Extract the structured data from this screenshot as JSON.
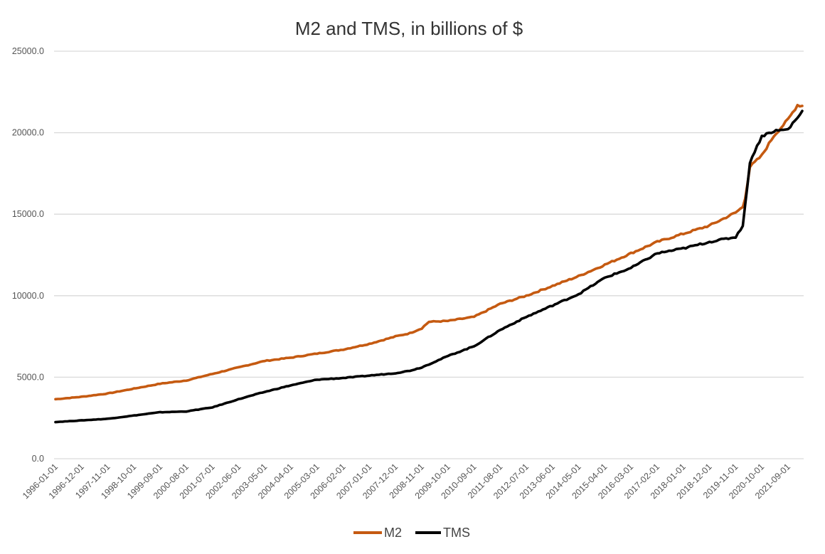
{
  "chart_data": {
    "type": "line",
    "title": "M2 and TMS, in billions of $",
    "xlabel": "",
    "ylabel": "",
    "ylim": [
      0,
      25000
    ],
    "yticks": [
      "0.0",
      "5000.0",
      "10000.0",
      "15000.0",
      "20000.0",
      "25000.0"
    ],
    "ytick_values": [
      0,
      5000,
      10000,
      15000,
      20000,
      25000
    ],
    "x_start": "1996-01-01",
    "x_end": "2022-03-01",
    "xticks": [
      "1996-01-01",
      "1996-12-01",
      "1997-11-01",
      "1998-10-01",
      "1999-09-01",
      "2000-08-01",
      "2001-07-01",
      "2002-06-01",
      "2003-05-01",
      "2004-04-01",
      "2005-03-01",
      "2006-02-01",
      "2007-01-01",
      "2007-12-01",
      "2008-11-01",
      "2009-10-01",
      "2010-09-01",
      "2011-08-01",
      "2012-07-01",
      "2013-06-01",
      "2014-05-01",
      "2015-04-01",
      "2016-03-01",
      "2017-02-01",
      "2018-01-01",
      "2018-12-01",
      "2019-11-01",
      "2020-10-01",
      "2021-09-01"
    ],
    "grid": true,
    "legend_position": "bottom",
    "series": [
      {
        "name": "M2",
        "color": "#c55a11",
        "points": [
          [
            "1996-01-01",
            3650
          ],
          [
            "1996-12-01",
            3800
          ],
          [
            "1997-11-01",
            4000
          ],
          [
            "1998-10-01",
            4300
          ],
          [
            "1999-09-01",
            4600
          ],
          [
            "2000-08-01",
            4800
          ],
          [
            "2001-07-01",
            5200
          ],
          [
            "2002-06-01",
            5600
          ],
          [
            "2003-05-01",
            6000
          ],
          [
            "2004-04-01",
            6200
          ],
          [
            "2005-03-01",
            6450
          ],
          [
            "2006-02-01",
            6700
          ],
          [
            "2007-01-01",
            7050
          ],
          [
            "2007-12-01",
            7500
          ],
          [
            "2008-06-01",
            7700
          ],
          [
            "2008-11-01",
            8000
          ],
          [
            "2009-02-01",
            8400
          ],
          [
            "2009-10-01",
            8450
          ],
          [
            "2010-09-01",
            8700
          ],
          [
            "2011-08-01",
            9500
          ],
          [
            "2012-07-01",
            10000
          ],
          [
            "2013-06-01",
            10600
          ],
          [
            "2014-05-01",
            11200
          ],
          [
            "2015-04-01",
            11900
          ],
          [
            "2016-03-01",
            12600
          ],
          [
            "2017-02-01",
            13300
          ],
          [
            "2018-01-01",
            13800
          ],
          [
            "2018-12-01",
            14300
          ],
          [
            "2019-11-01",
            15100
          ],
          [
            "2020-02-01",
            15450
          ],
          [
            "2020-03-01",
            16000
          ],
          [
            "2020-05-01",
            17900
          ],
          [
            "2020-10-01",
            18600
          ],
          [
            "2021-03-01",
            19800
          ],
          [
            "2021-09-01",
            20800
          ],
          [
            "2022-01-01",
            21700
          ],
          [
            "2022-03-01",
            21650
          ]
        ]
      },
      {
        "name": "TMS",
        "color": "#000000",
        "points": [
          [
            "1996-01-01",
            2250
          ],
          [
            "1996-12-01",
            2350
          ],
          [
            "1997-11-01",
            2450
          ],
          [
            "1998-10-01",
            2650
          ],
          [
            "1999-09-01",
            2850
          ],
          [
            "2000-08-01",
            2900
          ],
          [
            "2001-07-01",
            3150
          ],
          [
            "2002-06-01",
            3650
          ],
          [
            "2003-05-01",
            4100
          ],
          [
            "2004-04-01",
            4500
          ],
          [
            "2005-03-01",
            4850
          ],
          [
            "2006-02-01",
            4950
          ],
          [
            "2007-01-01",
            5100
          ],
          [
            "2007-12-01",
            5250
          ],
          [
            "2008-06-01",
            5400
          ],
          [
            "2008-11-01",
            5600
          ],
          [
            "2009-10-01",
            6300
          ],
          [
            "2010-09-01",
            6900
          ],
          [
            "2011-08-01",
            7900
          ],
          [
            "2012-07-01",
            8700
          ],
          [
            "2013-06-01",
            9400
          ],
          [
            "2014-05-01",
            10100
          ],
          [
            "2015-04-01",
            11100
          ],
          [
            "2016-03-01",
            11700
          ],
          [
            "2017-02-01",
            12600
          ],
          [
            "2018-01-01",
            12900
          ],
          [
            "2018-12-01",
            13300
          ],
          [
            "2019-11-01",
            13600
          ],
          [
            "2020-02-01",
            14300
          ],
          [
            "2020-03-01",
            15500
          ],
          [
            "2020-05-01",
            18200
          ],
          [
            "2020-10-01",
            19800
          ],
          [
            "2021-03-01",
            20100
          ],
          [
            "2021-09-01",
            20200
          ],
          [
            "2022-03-01",
            21300
          ]
        ]
      }
    ]
  }
}
